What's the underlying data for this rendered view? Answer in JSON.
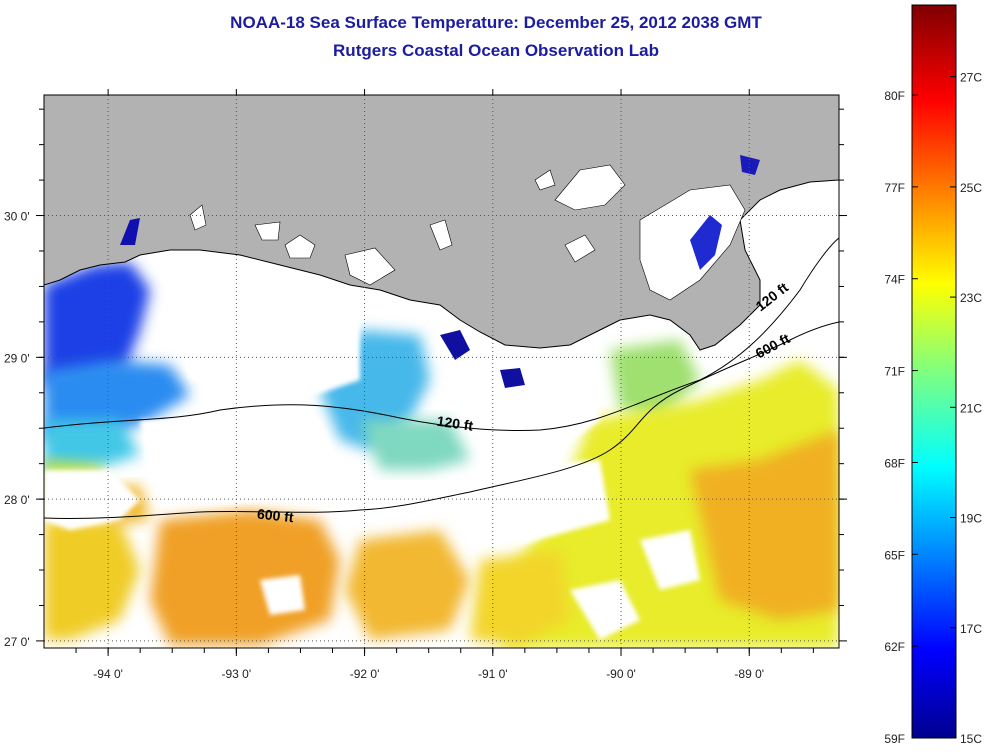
{
  "title": "NOAA-18 Sea Surface Temperature:  December 25, 2012 2038 GMT",
  "subtitle": "Rutgers Coastal Ocean Observation Lab",
  "map": {
    "lon_range": [
      -94.5,
      -88.3
    ],
    "lat_range": [
      26.95,
      30.85
    ],
    "x_ticks": [
      {
        "value": -94,
        "label": "-94 0'"
      },
      {
        "value": -93,
        "label": "-93 0'"
      },
      {
        "value": -92,
        "label": "-92 0'"
      },
      {
        "value": -91,
        "label": "-91 0'"
      },
      {
        "value": -90,
        "label": "-90 0'"
      },
      {
        "value": -89,
        "label": "-89 0'"
      }
    ],
    "y_ticks": [
      {
        "value": 30,
        "label": "30 0'"
      },
      {
        "value": 29,
        "label": "29 0'"
      },
      {
        "value": 28,
        "label": "28 0'"
      },
      {
        "value": 27,
        "label": "27 0'"
      }
    ],
    "contour_labels": [
      {
        "text": "120 ft",
        "lon": -91.3,
        "lat": 28.5,
        "angle": 8
      },
      {
        "text": "600 ft",
        "lon": -92.7,
        "lat": 27.85,
        "angle": 6
      },
      {
        "text": "120 ft",
        "lon": -88.8,
        "lat": 29.4,
        "angle": -38
      },
      {
        "text": "600 ft",
        "lon": -88.8,
        "lat": 29.05,
        "angle": -28
      }
    ],
    "colors": {
      "land": "#b2b2b2",
      "no_data": "#ffffff",
      "coast": "#000000"
    }
  },
  "colorbar": {
    "min_c": 15,
    "max_c": 28.3,
    "fahrenheit_labels": [
      "80F",
      "77F",
      "74F",
      "71F",
      "68F",
      "65F",
      "62F",
      "59F"
    ],
    "celsius_labels": [
      "27C",
      "25C",
      "23C",
      "21C",
      "19C",
      "17C",
      "15C"
    ],
    "fahrenheit_values": [
      80,
      77,
      74,
      71,
      68,
      65,
      62,
      59
    ],
    "celsius_values": [
      27,
      25,
      23,
      21,
      19,
      17,
      15
    ]
  }
}
